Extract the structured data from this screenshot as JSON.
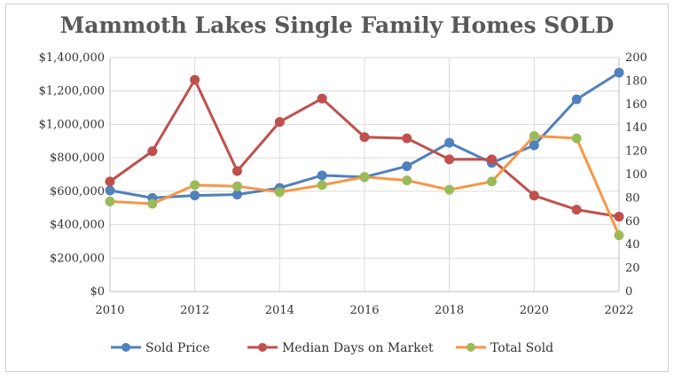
{
  "chart_data": {
    "type": "line",
    "title": "Mammoth Lakes Single Family Homes SOLD",
    "x": [
      2010,
      2011,
      2012,
      2013,
      2014,
      2015,
      2016,
      2017,
      2018,
      2019,
      2020,
      2021,
      2022
    ],
    "x_ticks": [
      "2010",
      "2012",
      "2014",
      "2016",
      "2018",
      "2020",
      "2022"
    ],
    "x_tick_values": [
      2010,
      2012,
      2014,
      2016,
      2018,
      2020,
      2022
    ],
    "xlim": [
      2010,
      2022
    ],
    "y_left": {
      "ylim": [
        0,
        1400000
      ],
      "ticks": [
        "$0",
        "$200,000",
        "$400,000",
        "$600,000",
        "$800,000",
        "$1,000,000",
        "$1,200,000",
        "$1,400,000"
      ],
      "tick_values": [
        0,
        200000,
        400000,
        600000,
        800000,
        1000000,
        1200000,
        1400000
      ]
    },
    "y_right": {
      "ylim": [
        0,
        200
      ],
      "ticks": [
        "0",
        "20",
        "40",
        "60",
        "80",
        "100",
        "120",
        "140",
        "160",
        "180",
        "200"
      ],
      "tick_values": [
        0,
        20,
        40,
        60,
        80,
        100,
        120,
        140,
        160,
        180,
        200
      ]
    },
    "grid": true,
    "legend_position": "bottom",
    "series": [
      {
        "name": "Sold Price",
        "axis": "left",
        "color": "#4F81BD",
        "values": [
          605000,
          560000,
          575000,
          580000,
          620000,
          695000,
          685000,
          750000,
          890000,
          770000,
          875000,
          1150000,
          1310000
        ]
      },
      {
        "name": "Median Days on Market",
        "axis": "right",
        "color": "#C0504D",
        "values": [
          94,
          120,
          181,
          103,
          145,
          165,
          132,
          131,
          113,
          113,
          82,
          70,
          64
        ]
      },
      {
        "name": "Total Sold",
        "axis": "right",
        "color": "#F79646",
        "marker_color": "#9BBB59",
        "values": [
          77,
          75,
          91,
          90,
          85,
          91,
          98,
          95,
          87,
          94,
          133,
          131,
          48
        ]
      }
    ]
  }
}
